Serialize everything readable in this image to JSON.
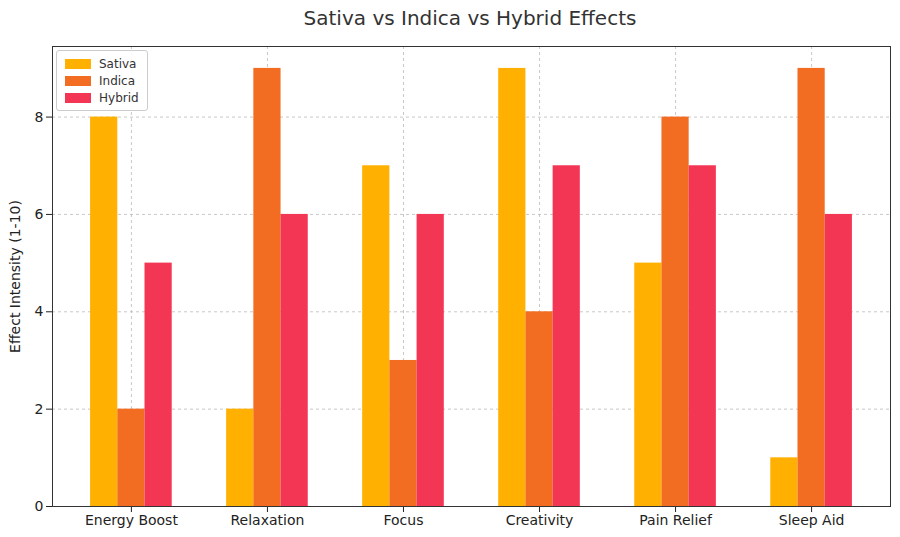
{
  "chart_data": {
    "type": "bar",
    "title": "Sativa vs Indica vs Hybrid Effects",
    "y_label": "Effect Intensity (1-10)",
    "categories": [
      "Energy Boost",
      "Relaxation",
      "Focus",
      "Creativity",
      "Pain Relief",
      "Sleep Aid"
    ],
    "series": [
      {
        "name": "Sativa",
        "color": "#ffb000",
        "values": [
          8,
          2,
          7,
          9,
          5,
          1
        ]
      },
      {
        "name": "Indica",
        "color": "#f26c22",
        "values": [
          2,
          9,
          3,
          4,
          8,
          9
        ]
      },
      {
        "name": "Hybrid",
        "color": "#f43655",
        "values": [
          5,
          6,
          6,
          7,
          7,
          6
        ]
      }
    ],
    "ylim": [
      0,
      9.45
    ],
    "yticks": [
      0,
      2,
      4,
      6,
      8
    ],
    "grid": true,
    "legend": "upper left"
  }
}
